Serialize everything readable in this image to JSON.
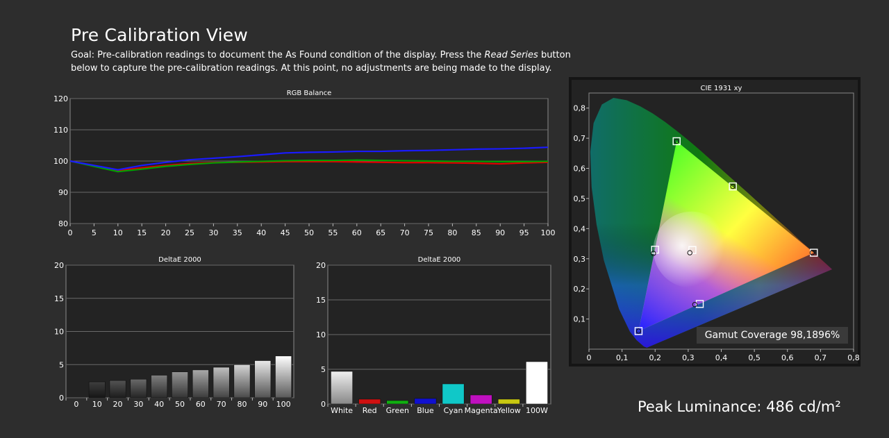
{
  "page": {
    "title": "Pre Calibration View",
    "goal_prefix": "Goal: Pre-calibration readings to document the As Found condition of the display. Press the ",
    "goal_button": "Read Series",
    "goal_suffix": " button below to capture the pre-calibration readings. At this point, no adjustments are being made to the display.",
    "peak_luminance": "Peak Luminance: 486 cd/m²"
  },
  "chart_data": [
    {
      "type": "line",
      "title": "RGB Balance",
      "x": [
        0,
        5,
        10,
        15,
        20,
        25,
        30,
        35,
        40,
        45,
        50,
        55,
        60,
        65,
        70,
        75,
        80,
        85,
        90,
        95,
        100
      ],
      "ylim": [
        80,
        120
      ],
      "yticks": [
        80,
        90,
        100,
        110,
        120
      ],
      "xticks": [
        0,
        5,
        10,
        15,
        20,
        25,
        30,
        35,
        40,
        45,
        50,
        55,
        60,
        65,
        70,
        75,
        80,
        85,
        90,
        95,
        100
      ],
      "series": [
        {
          "color": "#e00000",
          "values": [
            100,
            98.5,
            97,
            97.8,
            98.6,
            99.2,
            99.5,
            99.6,
            99.7,
            99.8,
            99.8,
            99.8,
            99.7,
            99.6,
            99.5,
            99.5,
            99.4,
            99.3,
            99.1,
            99.4,
            99.6
          ]
        },
        {
          "color": "#00a000",
          "values": [
            100,
            98.3,
            96.6,
            97.4,
            98.3,
            98.9,
            99.4,
            99.7,
            99.9,
            100.1,
            100.2,
            100.2,
            100.3,
            100.2,
            100.1,
            100,
            99.9,
            99.9,
            99.8,
            99.8,
            99.9
          ]
        },
        {
          "color": "#1a1aff",
          "values": [
            100,
            98.6,
            97.2,
            98.6,
            99.6,
            100.4,
            100.9,
            101.4,
            102,
            102.6,
            102.8,
            102.9,
            103.1,
            103.1,
            103.3,
            103.4,
            103.6,
            103.8,
            103.9,
            104.1,
            104.4
          ]
        }
      ],
      "grid": true
    },
    {
      "type": "bar",
      "title": "DeltaE 2000",
      "categories": [
        "0",
        "10",
        "20",
        "30",
        "40",
        "50",
        "60",
        "70",
        "80",
        "90",
        "100"
      ],
      "values": [
        0,
        2.4,
        2.6,
        2.8,
        3.4,
        3.9,
        4.2,
        4.6,
        5.0,
        5.6,
        6.3
      ],
      "ylim": [
        0,
        20
      ],
      "yticks": [
        0,
        5,
        10,
        15,
        20
      ],
      "grid": true
    },
    {
      "type": "bar",
      "title": "DeltaE 2000",
      "categories": [
        "White",
        "Red",
        "Green",
        "Blue",
        "Cyan",
        "Magenta",
        "Yellow",
        "100W"
      ],
      "values": [
        4.7,
        0.7,
        0.5,
        0.8,
        2.9,
        1.3,
        0.7,
        6.1
      ],
      "colors": [
        "#d8d8d8",
        "#d01010",
        "#10b010",
        "#1010d0",
        "#10c8c8",
        "#c010c0",
        "#c8c810",
        "#ffffff"
      ],
      "ylim": [
        0,
        20
      ],
      "yticks": [
        0,
        5,
        10,
        15,
        20
      ],
      "grid": true
    },
    {
      "type": "scatter",
      "title": "CIE 1931 xy",
      "xlim": [
        0,
        0.8
      ],
      "ylim": [
        0,
        0.85
      ],
      "xticks": [
        0,
        0.1,
        0.2,
        0.3,
        0.4,
        0.5,
        0.6,
        0.7,
        0.8
      ],
      "yticks": [
        0.1,
        0.2,
        0.3,
        0.4,
        0.5,
        0.6,
        0.7,
        0.8
      ],
      "xtick_labels": [
        "0",
        "0,1",
        "0,2",
        "0,3",
        "0,4",
        "0,5",
        "0,6",
        "0,7",
        "0,8"
      ],
      "ytick_labels": [
        "0,1",
        "0,2",
        "0,3",
        "0,4",
        "0,5",
        "0,6",
        "0,7",
        "0,8"
      ],
      "targets": [
        {
          "name": "red",
          "x": 0.68,
          "y": 0.32
        },
        {
          "name": "green",
          "x": 0.265,
          "y": 0.69
        },
        {
          "name": "blue",
          "x": 0.15,
          "y": 0.06
        },
        {
          "name": "yellow",
          "x": 0.435,
          "y": 0.54
        },
        {
          "name": "cyan",
          "x": 0.2,
          "y": 0.33
        },
        {
          "name": "magenta",
          "x": 0.335,
          "y": 0.15
        },
        {
          "name": "white",
          "x": 0.3127,
          "y": 0.329
        }
      ],
      "measured": [
        {
          "name": "red",
          "x": 0.675,
          "y": 0.32
        },
        {
          "name": "green",
          "x": 0.265,
          "y": 0.69
        },
        {
          "name": "blue",
          "x": 0.15,
          "y": 0.06
        },
        {
          "name": "yellow",
          "x": 0.435,
          "y": 0.54
        },
        {
          "name": "cyan",
          "x": 0.195,
          "y": 0.318
        },
        {
          "name": "magenta",
          "x": 0.32,
          "y": 0.148
        },
        {
          "name": "white",
          "x": 0.305,
          "y": 0.32
        }
      ],
      "gamut_coverage": "Gamut Coverage 98,1896%"
    }
  ]
}
